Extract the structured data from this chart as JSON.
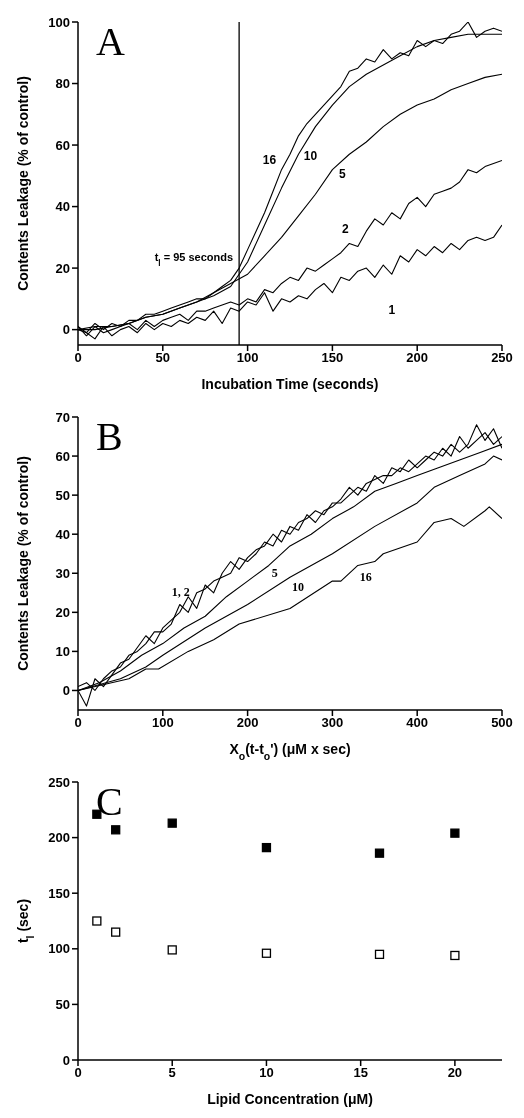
{
  "chart_data": [
    {
      "type": "line",
      "title": "A",
      "xlabel": "Incubation Time (seconds)",
      "ylabel": "Contents Leakage (% of control)",
      "xlim": [
        0,
        250
      ],
      "ylim": [
        -5,
        100
      ],
      "xticks": [
        0,
        50,
        100,
        150,
        200,
        250
      ],
      "yticks": [
        0,
        20,
        40,
        60,
        80,
        100
      ],
      "line_style": "solid",
      "ref_lines": [
        {
          "axis": "x",
          "value": 95,
          "label": "t$_{l}$ = 95 seconds",
          "color": "#000000"
        }
      ],
      "series": [
        {
          "name": "16",
          "color": "#000000",
          "x": [
            0,
            5,
            10,
            15,
            20,
            25,
            30,
            35,
            40,
            45,
            50,
            55,
            60,
            65,
            70,
            75,
            80,
            85,
            90,
            95,
            100,
            105,
            110,
            115,
            120,
            125,
            130,
            135,
            140,
            145,
            150,
            155,
            160,
            165,
            170,
            175,
            180,
            185,
            190,
            195,
            200,
            205,
            210,
            215,
            220,
            225,
            230,
            235,
            240,
            245,
            250
          ],
          "values": [
            1,
            -1,
            2,
            0,
            2,
            1,
            3,
            3,
            5,
            5,
            6,
            7,
            8,
            9,
            10,
            10,
            12,
            14,
            16,
            20,
            26,
            32,
            38,
            45,
            52,
            57,
            63,
            67,
            70,
            73,
            76,
            79,
            84,
            85,
            88,
            87,
            91,
            88,
            90,
            89,
            94,
            92,
            94,
            93,
            96,
            97,
            100,
            95,
            97,
            98,
            97
          ]
        },
        {
          "name": "10",
          "color": "#000000",
          "x": [
            0,
            10,
            20,
            30,
            40,
            50,
            60,
            70,
            80,
            90,
            95,
            100,
            110,
            120,
            130,
            140,
            150,
            160,
            170,
            180,
            190,
            200,
            210,
            220,
            230,
            240,
            250
          ],
          "values": [
            0,
            0,
            1,
            2,
            4,
            5,
            7,
            9,
            11,
            14,
            18,
            22,
            34,
            46,
            57,
            66,
            73,
            79,
            83,
            86,
            89,
            92,
            94,
            95,
            96,
            96,
            96
          ]
        },
        {
          "name": "5",
          "color": "#000000",
          "x": [
            0,
            10,
            20,
            30,
            40,
            50,
            60,
            70,
            80,
            90,
            100,
            110,
            120,
            130,
            140,
            150,
            160,
            170,
            180,
            190,
            200,
            210,
            220,
            230,
            240,
            250
          ],
          "values": [
            0,
            1,
            1,
            2,
            4,
            5,
            7,
            9,
            12,
            15,
            18,
            24,
            30,
            37,
            44,
            52,
            57,
            61,
            66,
            70,
            73,
            75,
            78,
            80,
            82,
            83
          ]
        },
        {
          "name": "2",
          "color": "#000000",
          "x": [
            0,
            5,
            10,
            15,
            20,
            25,
            30,
            35,
            40,
            45,
            50,
            55,
            60,
            65,
            70,
            75,
            80,
            85,
            90,
            95,
            100,
            105,
            110,
            115,
            120,
            125,
            130,
            135,
            140,
            145,
            150,
            155,
            160,
            165,
            170,
            175,
            180,
            185,
            190,
            195,
            200,
            205,
            210,
            215,
            220,
            225,
            230,
            235,
            240,
            245,
            250
          ],
          "values": [
            1,
            -2,
            1,
            -1,
            0,
            1,
            2,
            0,
            3,
            1,
            3,
            4,
            5,
            3,
            6,
            6,
            7,
            8,
            9,
            8,
            10,
            9,
            13,
            12,
            15,
            17,
            16,
            20,
            19,
            21,
            23,
            25,
            28,
            27,
            32,
            36,
            34,
            38,
            36,
            41,
            43,
            40,
            44,
            45,
            46,
            48,
            52,
            51,
            53,
            54,
            55
          ]
        },
        {
          "name": "1",
          "color": "#000000",
          "x": [
            0,
            5,
            10,
            15,
            20,
            25,
            30,
            35,
            40,
            45,
            50,
            55,
            60,
            65,
            70,
            75,
            80,
            85,
            90,
            95,
            100,
            105,
            110,
            115,
            120,
            125,
            130,
            135,
            140,
            145,
            150,
            155,
            160,
            165,
            170,
            175,
            180,
            185,
            190,
            195,
            200,
            205,
            210,
            215,
            220,
            225,
            230,
            235,
            240,
            245,
            250
          ],
          "values": [
            0,
            -1,
            -3,
            1,
            -2,
            0,
            1,
            -1,
            2,
            0,
            2,
            1,
            3,
            2,
            4,
            3,
            6,
            2,
            7,
            6,
            9,
            8,
            12,
            6,
            10,
            9,
            11,
            10,
            13,
            15,
            12,
            17,
            16,
            19,
            20,
            17,
            21,
            18,
            24,
            22,
            26,
            24,
            27,
            25,
            28,
            26,
            29,
            30,
            29,
            30,
            34
          ]
        }
      ]
    },
    {
      "type": "line",
      "title": "B",
      "xlabel": "X$_{o}$(t-t$_{o}$') (μM x sec)",
      "ylabel": "Contents Leakage (% of control)",
      "xlim": [
        0,
        500
      ],
      "ylim": [
        -5,
        70
      ],
      "xticks": [
        0,
        100,
        200,
        300,
        400,
        500
      ],
      "yticks": [
        0,
        10,
        20,
        30,
        40,
        50,
        60,
        70
      ],
      "line_style": "solid",
      "series": [
        {
          "name": "1, 2",
          "color": "#000000",
          "x": [
            0,
            10,
            20,
            30,
            40,
            50,
            60,
            70,
            80,
            90,
            100,
            110,
            120,
            130,
            140,
            150,
            160,
            170,
            180,
            190,
            200,
            210,
            220,
            230,
            240,
            250,
            260,
            270,
            280,
            290,
            300,
            310,
            320,
            330,
            340,
            350,
            360,
            370,
            380,
            390,
            400,
            410,
            420,
            430,
            440,
            450,
            460,
            470,
            480,
            490,
            500
          ],
          "values": [
            0,
            -4,
            3,
            1,
            4,
            7,
            8,
            11,
            14,
            12,
            16,
            18,
            20,
            24,
            21,
            27,
            25,
            30,
            33,
            31,
            34,
            36,
            37,
            40,
            38,
            42,
            41,
            45,
            43,
            46,
            47,
            49,
            52,
            50,
            53,
            54,
            55,
            55,
            57,
            56,
            58,
            60,
            59,
            62,
            60,
            65,
            62,
            64,
            66,
            63,
            65
          ]
        },
        {
          "color": "#000000",
          "x": [
            0,
            10,
            20,
            30,
            40,
            50,
            60,
            70,
            80,
            90,
            100,
            110,
            120,
            130,
            140,
            150,
            160,
            170,
            180,
            190,
            200,
            210,
            220,
            230,
            240,
            250,
            260,
            270,
            280,
            290,
            300,
            310,
            320,
            330,
            340,
            350,
            360,
            370,
            380,
            390,
            400,
            410,
            420,
            430,
            440,
            450,
            460,
            470,
            480,
            490,
            500
          ],
          "values": [
            1,
            2,
            0,
            3,
            5,
            6,
            9,
            10,
            12,
            15,
            15,
            17,
            22,
            20,
            25,
            26,
            28,
            29,
            30,
            34,
            33,
            35,
            38,
            37,
            41,
            40,
            43,
            44,
            46,
            45,
            48,
            48,
            50,
            52,
            51,
            55,
            53,
            57,
            56,
            59,
            57,
            59,
            61,
            60,
            63,
            61,
            63,
            68,
            64,
            67,
            62
          ]
        },
        {
          "name": "5",
          "color": "#000000",
          "x": [
            0,
            25,
            50,
            75,
            100,
            125,
            150,
            175,
            200,
            225,
            250,
            275,
            300,
            325,
            350,
            375,
            400,
            425,
            450,
            475,
            500
          ],
          "values": [
            0,
            2,
            5,
            9,
            12,
            16,
            19,
            24,
            28,
            32,
            37,
            40,
            44,
            47,
            51,
            53,
            55,
            57,
            59,
            61,
            63
          ]
        },
        {
          "name": "10",
          "color": "#000000",
          "x": [
            0,
            50,
            80,
            100,
            150,
            200,
            250,
            300,
            350,
            400,
            420,
            450,
            480,
            490,
            500
          ],
          "values": [
            0,
            3,
            6,
            9,
            16,
            22,
            29,
            35,
            42,
            48,
            52,
            55,
            58,
            60,
            59
          ]
        },
        {
          "name": "16",
          "color": "#000000",
          "x": [
            0,
            60,
            80,
            95,
            130,
            160,
            190,
            250,
            300,
            310,
            330,
            350,
            360,
            400,
            420,
            440,
            455,
            480,
            485,
            500
          ],
          "values": [
            0,
            3,
            5.5,
            5.5,
            10,
            13,
            17,
            21,
            28,
            28,
            32,
            33,
            35,
            38,
            43,
            44,
            42,
            46,
            47,
            44
          ]
        }
      ]
    },
    {
      "type": "scatter",
      "title": "C",
      "xlabel": "Lipid Concentration (μM)",
      "ylabel": "t$_{l}$ (sec)",
      "xlim": [
        0,
        22.5
      ],
      "ylim": [
        0,
        250
      ],
      "xticks": [
        0,
        5,
        10,
        15,
        20
      ],
      "yticks": [
        0,
        50,
        100,
        150,
        200,
        250
      ],
      "marker": "square",
      "series": [
        {
          "color": "#000000",
          "x": [
            1,
            2,
            5,
            10,
            16,
            20
          ],
          "values": [
            221,
            207,
            213,
            191,
            186,
            204
          ]
        },
        {
          "color": "#000000",
          "x": [
            1,
            2,
            5,
            10,
            16,
            20
          ],
          "values": [
            125,
            115,
            99,
            96,
            95,
            94
          ]
        }
      ]
    }
  ]
}
